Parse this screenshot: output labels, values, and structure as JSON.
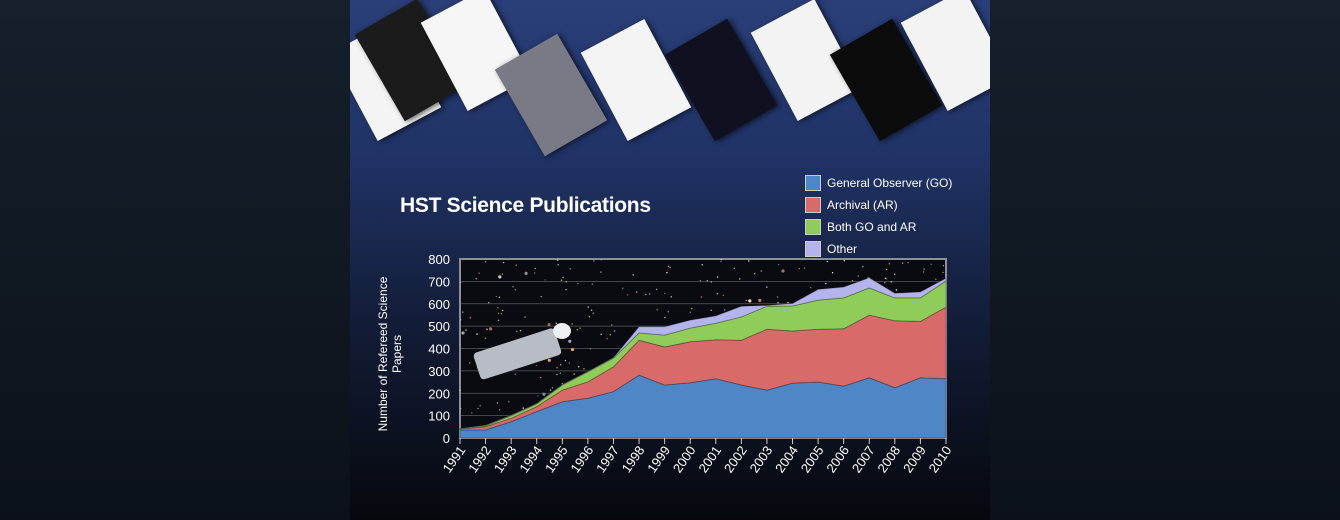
{
  "title": "HST Science Publications",
  "legend": [
    {
      "label": "General Observer (GO)",
      "color": "#4f86c6"
    },
    {
      "label": "Archival (AR)",
      "color": "#d96a6a"
    },
    {
      "label": "Both GO and AR",
      "color": "#8fcc5a"
    },
    {
      "label": "Other",
      "color": "#b4b4ec"
    }
  ],
  "chart_data": {
    "type": "area",
    "stacked": true,
    "title": "HST Science Publications",
    "xlabel": "",
    "ylabel": "Number of Refereed Science Papers",
    "ylim": [
      0,
      800
    ],
    "yticks": [
      "0",
      "100",
      "200",
      "300",
      "400",
      "500",
      "600",
      "700",
      "800"
    ],
    "categories": [
      "1991",
      "1992",
      "1993",
      "1994",
      "1995",
      "1996",
      "1997",
      "1998",
      "1999",
      "2000",
      "2001",
      "2002",
      "2003",
      "2004",
      "2005",
      "2006",
      "2007",
      "2008",
      "2009",
      "2010"
    ],
    "grid": true,
    "legend_position": "top-right",
    "series": [
      {
        "name": "General Observer (GO)",
        "values": [
          36,
          36,
          73,
          118,
          162,
          178,
          207,
          281,
          237,
          247,
          265,
          237,
          214,
          245,
          250,
          232,
          269,
          225,
          269,
          265
        ]
      },
      {
        "name": "Archival (AR)",
        "values": [
          4,
          15,
          15,
          22,
          52,
          73,
          111,
          156,
          170,
          183,
          174,
          200,
          272,
          233,
          236,
          256,
          280,
          299,
          252,
          320
        ]
      },
      {
        "name": "Both GO and AR",
        "values": [
          2,
          4,
          12,
          13,
          23,
          45,
          39,
          33,
          53,
          61,
          74,
          104,
          103,
          112,
          130,
          138,
          122,
          102,
          105,
          117
        ]
      },
      {
        "name": "Other",
        "values": [
          1,
          2,
          2,
          2,
          2,
          2,
          3,
          27,
          37,
          36,
          33,
          48,
          4,
          11,
          48,
          49,
          45,
          21,
          27,
          12
        ]
      }
    ]
  }
}
